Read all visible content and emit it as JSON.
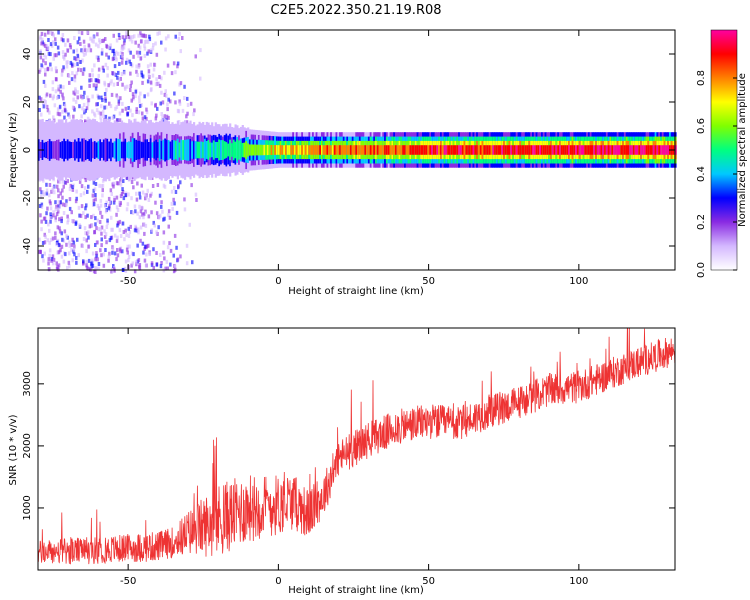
{
  "title": "C2E5.2022.350.21.19.R08",
  "chart_data": [
    {
      "type": "heatmap",
      "xlabel": "Height of straight line (km)",
      "ylabel": "Frequency (Hz)",
      "xlim": [
        -80,
        132
      ],
      "ylim": [
        -50,
        50
      ],
      "xticks": [
        -50,
        0,
        50,
        100
      ],
      "yticks": [
        -40,
        -20,
        0,
        20,
        40
      ],
      "colorbar": {
        "label": "Normalized spectral amplitude",
        "range": [
          0,
          1
        ],
        "ticks": [
          "0.0",
          "0.2",
          "0.4",
          "0.6",
          "0.8"
        ]
      },
      "colormap": [
        "#ffffff",
        "#d4b8ff",
        "#8a2be2",
        "#0000ff",
        "#00c8ff",
        "#00ff80",
        "#80ff00",
        "#ffff00",
        "#ff8000",
        "#ff0000",
        "#ff00a0"
      ],
      "band": {
        "center_hz": 0,
        "description_points": [
          {
            "x": -80,
            "amp": 0.25,
            "width_hz": 3
          },
          {
            "x": -40,
            "amp": 0.35,
            "width_hz": 3
          },
          {
            "x": -15,
            "amp": 0.5,
            "width_hz": 2.5
          },
          {
            "x": 0,
            "amp": 0.75,
            "width_hz": 2
          },
          {
            "x": 50,
            "amp": 0.9,
            "width_hz": 2
          },
          {
            "x": 132,
            "amp": 0.95,
            "width_hz": 2
          }
        ]
      },
      "scatter_noise_region": [
        -80,
        -25
      ],
      "grid": false
    },
    {
      "type": "line",
      "xlabel": "Height of straight line (km)",
      "ylabel": "SNR (10 * v/v)",
      "xlim": [
        -80,
        132
      ],
      "ylim": [
        0,
        3900
      ],
      "xticks": [
        -50,
        0,
        50,
        100
      ],
      "yticks": [
        1000,
        2000,
        3000
      ],
      "series": [
        {
          "color": "#ee3333",
          "trend_x": [
            -80,
            -60,
            -40,
            -35,
            -30,
            -20,
            -10,
            0,
            5,
            10,
            15,
            20,
            30,
            40,
            50,
            60,
            70,
            80,
            90,
            100,
            110,
            120,
            132
          ],
          "trend_y": [
            280,
            320,
            380,
            450,
            600,
            800,
            1000,
            1050,
            1100,
            900,
            1200,
            1800,
            2100,
            2300,
            2400,
            2350,
            2550,
            2700,
            2900,
            2950,
            3150,
            3350,
            3550
          ],
          "noise_amp_x": [
            -80,
            -35,
            -20,
            0,
            20,
            132
          ],
          "noise_amp_y": [
            200,
            250,
            600,
            500,
            300,
            250
          ]
        }
      ],
      "grid": false
    }
  ]
}
